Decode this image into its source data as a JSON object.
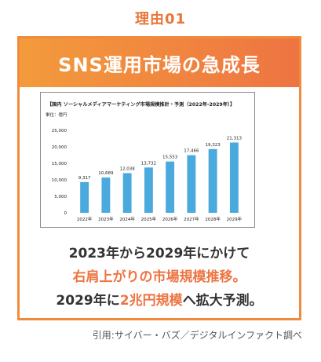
{
  "reason_label": "理由01",
  "banner_title": "SNS運用市場の急成長",
  "body": {
    "line1": "2023年から2029年にかけて",
    "line2": "右肩上がりの市場規模推移。",
    "line3_a": "2029年に",
    "line3_b": "2兆円規模",
    "line3_c": "へ拡大予測。"
  },
  "source": "引用:サイバー・バズ／デジタルインファクト調べ",
  "colors": {
    "accent": "#ee7442",
    "bar": "#4aa9dd"
  },
  "chart_data": {
    "type": "bar",
    "title": "【国内 ソーシャルメディアマーケティング市場規模推計・予測（2022年-2029年）】",
    "unit_label": "単位：億円",
    "categories": [
      "2022年",
      "2023年",
      "2024年",
      "2025年",
      "2026年",
      "2027年",
      "2028年",
      "2029年"
    ],
    "values": [
      9317,
      10689,
      12038,
      13732,
      15553,
      17466,
      19323,
      21313
    ],
    "value_labels": [
      "9,317",
      "10,689",
      "12,038",
      "13,732",
      "15,553",
      "17,466",
      "19,323",
      "21,313"
    ],
    "yticks": [
      0,
      5000,
      10000,
      15000,
      20000,
      25000
    ],
    "ytick_labels": [
      "0",
      "5,000",
      "10,000",
      "15,000",
      "20,000",
      "25,000"
    ],
    "ylim": [
      0,
      25000
    ],
    "grid": false,
    "legend": "none"
  }
}
